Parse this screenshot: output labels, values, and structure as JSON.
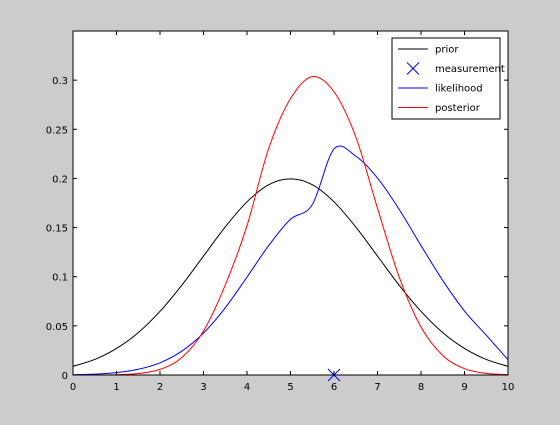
{
  "chart_data": {
    "type": "line",
    "title": "",
    "xlabel": "",
    "ylabel": "",
    "xlim": [
      0,
      10
    ],
    "ylim": [
      0,
      0.35
    ],
    "xticks": [
      "0",
      "1",
      "2",
      "3",
      "4",
      "5",
      "6",
      "7",
      "8",
      "9",
      "10"
    ],
    "yticks": [
      "0",
      "0.05",
      "0.1",
      "0.15",
      "0.2",
      "0.25",
      "0.3"
    ],
    "grid": false,
    "legend_position": "top-right",
    "series": [
      {
        "name": "prior",
        "color": "#000000",
        "kind": "line",
        "x": [
          0,
          0.5,
          1,
          1.5,
          2,
          2.5,
          3,
          3.5,
          4,
          4.5,
          5,
          5.5,
          6,
          6.5,
          7,
          7.5,
          8,
          8.5,
          9,
          9.5,
          10
        ],
        "y": [
          0.0088,
          0.0158,
          0.027,
          0.0431,
          0.0648,
          0.0913,
          0.121,
          0.1506,
          0.1762,
          0.1936,
          0.1995,
          0.1936,
          0.1762,
          0.1506,
          0.121,
          0.0913,
          0.0648,
          0.0431,
          0.027,
          0.0158,
          0.0088
        ]
      },
      {
        "name": "measurement",
        "color": "#0000ff",
        "kind": "marker",
        "marker": "x",
        "x": [
          6
        ],
        "y": [
          0
        ]
      },
      {
        "name": "likelihood",
        "color": "#0000ff",
        "kind": "line",
        "x": [
          0,
          0.5,
          1,
          1.5,
          2,
          2.5,
          3,
          3.5,
          4,
          4.5,
          5,
          5.5,
          6,
          6.5,
          7,
          7.5,
          8,
          8.5,
          9,
          9.5,
          10
        ],
        "y": [
          0.0003,
          0.0009,
          0.0024,
          0.0058,
          0.0124,
          0.0242,
          0.0427,
          0.0684,
          0.0996,
          0.1318,
          0.1585,
          0.1733,
          0.23,
          0.2227,
          0.2004,
          0.1684,
          0.1317,
          0.0962,
          0.0651,
          0.0405,
          0.0156
        ]
      },
      {
        "name": "posterior",
        "color": "#ff0000",
        "kind": "line",
        "x": [
          0,
          0.5,
          1,
          1.5,
          2,
          2.5,
          3,
          3.5,
          4,
          4.5,
          5,
          5.5,
          6,
          6.5,
          7,
          7.5,
          8,
          8.5,
          9,
          9.5,
          10
        ],
        "y": [
          0.0,
          0.0001,
          0.0003,
          0.0015,
          0.0057,
          0.0177,
          0.0447,
          0.0915,
          0.1519,
          0.2307,
          0.2812,
          0.3036,
          0.2882,
          0.2424,
          0.1697,
          0.0995,
          0.0488,
          0.0198,
          0.0064,
          0.0016,
          0.0003
        ]
      }
    ]
  }
}
